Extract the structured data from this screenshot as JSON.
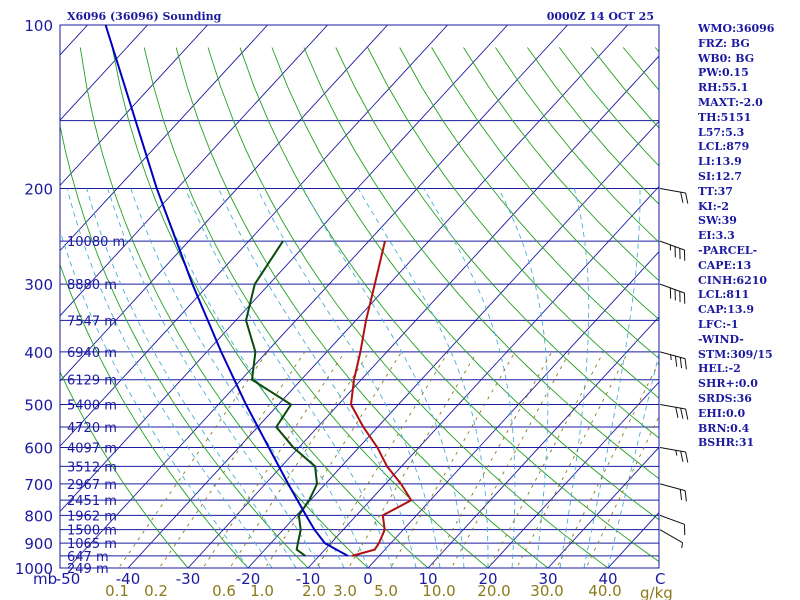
{
  "header": {
    "station_title": "X6096 (36096) Sounding",
    "valid_time": "0000Z 14 OCT 25"
  },
  "indices": [
    "WMO:36096",
    "FRZ: BG",
    "WB0: BG",
    "PW:0.15",
    "RH:55.1",
    "MAXT:-2.0",
    "TH:5151",
    "L57:5.3",
    "LCL:879",
    "LI:13.9",
    "SI:12.7",
    "TT:37",
    "KI:-2",
    "SW:39",
    "EI:3.3",
    "-PARCEL-",
    "CAPE:13",
    "CINH:6210",
    "LCL:811",
    "CAP:13.9",
    "LFC:-1",
    "-WIND-",
    "STM:309/15",
    "HEL:-2",
    "SHR+:0.0",
    "SRDS:36",
    "EHI:0.0",
    "BRN:0.4",
    "BSHR:31"
  ],
  "chart_data": {
    "type": "line",
    "title": "X6096 (36096) Sounding",
    "subtitle": "0000Z 14 OCT 25",
    "pressure_unit": "mb",
    "pressure_range": [
      1000,
      100
    ],
    "pressure_ticks": [
      {
        "p": 100,
        "label": "100"
      },
      {
        "p": 200,
        "label": "200"
      },
      {
        "p": 300,
        "label": "300"
      },
      {
        "p": 400,
        "label": "400"
      },
      {
        "p": 500,
        "label": "500"
      },
      {
        "p": 600,
        "label": "600"
      },
      {
        "p": 700,
        "label": "700"
      },
      {
        "p": 800,
        "label": "800"
      },
      {
        "p": 900,
        "label": "900"
      },
      {
        "p": 1000,
        "label": "1000"
      }
    ],
    "temperature_unit": "C",
    "temperature_ticks": [
      {
        "t": -50,
        "label": "-50"
      },
      {
        "t": -40,
        "label": "-40"
      },
      {
        "t": -30,
        "label": "-30"
      },
      {
        "t": -20,
        "label": "-20"
      },
      {
        "t": -10,
        "label": "-10"
      },
      {
        "t": 0,
        "label": "0"
      },
      {
        "t": 10,
        "label": "10"
      },
      {
        "t": 20,
        "label": "20"
      },
      {
        "t": 30,
        "label": "30"
      },
      {
        "t": 40,
        "label": "40"
      }
    ],
    "mixing_ratio_unit": "g/kg",
    "mixing_ratio_ticks": [
      "0.1",
      "0.2",
      "0.6",
      "1.0",
      "2.0",
      "3.0",
      "5.0",
      "10.0",
      "20.0",
      "30.0",
      "40.0"
    ],
    "height_levels": [
      {
        "p": 250,
        "label": "10080 m"
      },
      {
        "p": 300,
        "label": "8880 m"
      },
      {
        "p": 350,
        "label": "7547 m"
      },
      {
        "p": 400,
        "label": "6940 m"
      },
      {
        "p": 450,
        "label": "6129 m"
      },
      {
        "p": 500,
        "label": "5400 m"
      },
      {
        "p": 550,
        "label": "4720 m"
      },
      {
        "p": 600,
        "label": "4097 m"
      },
      {
        "p": 650,
        "label": "3512 m"
      },
      {
        "p": 700,
        "label": "2967 m"
      },
      {
        "p": 750,
        "label": "2451 m"
      },
      {
        "p": 800,
        "label": "1962 m"
      },
      {
        "p": 850,
        "label": "1500 m"
      },
      {
        "p": 900,
        "label": "1065 m"
      },
      {
        "p": 950,
        "label": "647 m"
      },
      {
        "p": 1000,
        "label": "249 m"
      }
    ],
    "series": [
      {
        "name": "Temperature",
        "color": "#b01010",
        "points": [
          {
            "p": 950,
            "t": -4.5
          },
          {
            "p": 925,
            "t": -1.7
          },
          {
            "p": 900,
            "t": -2.0
          },
          {
            "p": 850,
            "t": -3.1
          },
          {
            "p": 800,
            "t": -5.6
          },
          {
            "p": 750,
            "t": -3.2
          },
          {
            "p": 700,
            "t": -7.4
          },
          {
            "p": 650,
            "t": -12.4
          },
          {
            "p": 600,
            "t": -16.9
          },
          {
            "p": 550,
            "t": -22.4
          },
          {
            "p": 500,
            "t": -27.9
          },
          {
            "p": 450,
            "t": -31.2
          },
          {
            "p": 400,
            "t": -34.4
          },
          {
            "p": 350,
            "t": -38.3
          },
          {
            "p": 300,
            "t": -42.4
          },
          {
            "p": 250,
            "t": -47.3
          }
        ]
      },
      {
        "name": "Dewpoint",
        "color": "#0a4a0a",
        "points": [
          {
            "p": 950,
            "t": -12.3
          },
          {
            "p": 925,
            "t": -14.7
          },
          {
            "p": 900,
            "t": -15.5
          },
          {
            "p": 850,
            "t": -17.1
          },
          {
            "p": 800,
            "t": -19.6
          },
          {
            "p": 750,
            "t": -20.2
          },
          {
            "p": 700,
            "t": -21.4
          },
          {
            "p": 650,
            "t": -24.4
          },
          {
            "p": 600,
            "t": -30.9
          },
          {
            "p": 550,
            "t": -36.9
          },
          {
            "p": 500,
            "t": -37.9
          },
          {
            "p": 450,
            "t": -48.2
          },
          {
            "p": 400,
            "t": -51.9
          },
          {
            "p": 350,
            "t": -58.3
          },
          {
            "p": 300,
            "t": -62.4
          },
          {
            "p": 250,
            "t": -64.3
          }
        ]
      },
      {
        "name": "Parcel",
        "color": "#0000c0",
        "points": [
          {
            "p": 950,
            "t": -5.2
          },
          {
            "p": 900,
            "t": -11.0
          },
          {
            "p": 850,
            "t": -14.8
          },
          {
            "p": 800,
            "t": -18.4
          },
          {
            "p": 700,
            "t": -26.2
          },
          {
            "p": 600,
            "t": -35.0
          },
          {
            "p": 500,
            "t": -45.4
          },
          {
            "p": 400,
            "t": -57.6
          },
          {
            "p": 300,
            "t": -72.8
          },
          {
            "p": 200,
            "t": -93.4
          },
          {
            "p": 100,
            "t": -127.0
          }
        ]
      }
    ],
    "wind_barbs": [
      {
        "p": 850,
        "dir": 300,
        "spd": 5
      },
      {
        "p": 800,
        "dir": 290,
        "spd": 10
      },
      {
        "p": 700,
        "dir": 285,
        "spd": 20
      },
      {
        "p": 600,
        "dir": 280,
        "spd": 25
      },
      {
        "p": 500,
        "dir": 280,
        "spd": 30
      },
      {
        "p": 400,
        "dir": 285,
        "spd": 35
      },
      {
        "p": 300,
        "dir": 290,
        "spd": 40
      },
      {
        "p": 250,
        "dir": 290,
        "spd": 35
      },
      {
        "p": 200,
        "dir": 280,
        "spd": 20
      }
    ]
  }
}
